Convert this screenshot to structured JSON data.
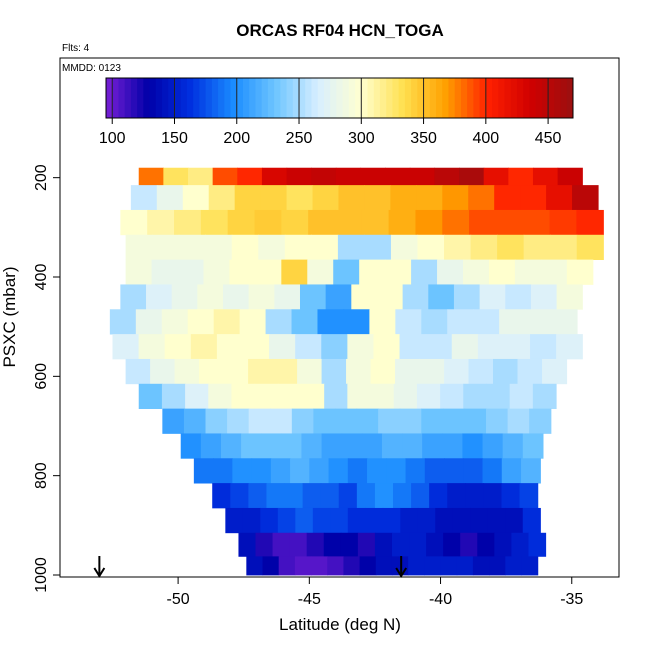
{
  "chart_data": {
    "type": "heatmap",
    "title": "ORCAS RF04 HCN_TOGA",
    "flts_label": "Flts: 4",
    "mmdd_label": "MMDD: 0123",
    "xlabel": "Latitude (deg N)",
    "ylabel": "PSXC (mbar)",
    "xlim": [
      -54.5,
      -33.2
    ],
    "ylim": [
      1000,
      100
    ],
    "x_ticks": [
      -50,
      -45,
      -40,
      -35
    ],
    "y_ticks": [
      200,
      400,
      600,
      800,
      1000
    ],
    "colorbar": {
      "range": [
        95,
        470
      ],
      "ticks": [
        100,
        150,
        200,
        250,
        300,
        350,
        400,
        450
      ],
      "colors": [
        "#7a1fd6",
        "#0000a8",
        "#0030e0",
        "#1a8cff",
        "#6fc6ff",
        "#d8efff",
        "#ffffd0",
        "#ffe050",
        "#ffa000",
        "#ff2000",
        "#d00000",
        "#9a1010"
      ]
    },
    "rows": [
      {
        "p": 190,
        "lat": [
          -51.5,
          -34.6
        ],
        "v": [
          380,
          330,
          320,
          390,
          400,
          430,
          440,
          445,
          440,
          440,
          440,
          440,
          450,
          460,
          420,
          400,
          420,
          440
        ]
      },
      {
        "p": 240,
        "lat": [
          -51.8,
          -34.0
        ],
        "v": [
          260,
          280,
          300,
          320,
          340,
          340,
          330,
          340,
          350,
          350,
          360,
          360,
          370,
          380,
          400,
          400,
          420,
          450
        ]
      },
      {
        "p": 290,
        "lat": [
          -52.2,
          -33.8
        ],
        "v": [
          300,
          310,
          320,
          330,
          340,
          345,
          340,
          350,
          350,
          350,
          360,
          370,
          380,
          390,
          390,
          390,
          395,
          400
        ]
      },
      {
        "p": 340,
        "lat": [
          -52.0,
          -33.8
        ],
        "v": [
          290,
          290,
          290,
          290,
          300,
          290,
          300,
          300,
          250,
          250,
          290,
          300,
          310,
          320,
          330,
          320,
          320,
          330
        ]
      },
      {
        "p": 390,
        "lat": [
          -52.0,
          -34.2
        ],
        "v": [
          290,
          280,
          280,
          290,
          300,
          300,
          340,
          290,
          230,
          300,
          300,
          250,
          280,
          290,
          300,
          290,
          290,
          300
        ]
      },
      {
        "p": 440,
        "lat": [
          -52.2,
          -34.6
        ],
        "v": [
          250,
          270,
          280,
          290,
          280,
          290,
          280,
          230,
          210,
          300,
          300,
          250,
          230,
          250,
          270,
          260,
          270,
          290
        ]
      },
      {
        "p": 490,
        "lat": [
          -52.6,
          -34.8
        ],
        "v": [
          250,
          280,
          290,
          300,
          310,
          300,
          250,
          230,
          200,
          200,
          300,
          260,
          250,
          260,
          260,
          280,
          280,
          280
        ]
      },
      {
        "p": 540,
        "lat": [
          -52.5,
          -34.6
        ],
        "v": [
          270,
          290,
          300,
          310,
          300,
          300,
          280,
          260,
          240,
          290,
          300,
          260,
          260,
          280,
          270,
          270,
          260,
          270
        ]
      },
      {
        "p": 590,
        "lat": [
          -52.0,
          -35.2
        ],
        "v": [
          260,
          280,
          290,
          300,
          300,
          310,
          310,
          290,
          250,
          290,
          300,
          280,
          280,
          270,
          260,
          250,
          260,
          270
        ]
      },
      {
        "p": 640,
        "lat": [
          -51.5,
          -35.6
        ],
        "v": [
          230,
          250,
          270,
          290,
          300,
          300,
          300,
          300,
          250,
          290,
          290,
          280,
          270,
          260,
          250,
          250,
          260,
          250
        ]
      },
      {
        "p": 690,
        "lat": [
          -50.6,
          -35.8
        ],
        "v": [
          210,
          220,
          240,
          250,
          260,
          260,
          240,
          230,
          230,
          230,
          240,
          240,
          230,
          230,
          230,
          240,
          250,
          240
        ]
      },
      {
        "p": 740,
        "lat": [
          -49.9,
          -36.1
        ],
        "v": [
          200,
          210,
          220,
          230,
          230,
          230,
          220,
          210,
          210,
          210,
          220,
          220,
          210,
          210,
          200,
          210,
          220,
          230
        ]
      },
      {
        "p": 790,
        "lat": [
          -49.4,
          -36.2
        ],
        "v": [
          190,
          190,
          200,
          200,
          210,
          220,
          210,
          200,
          190,
          200,
          200,
          190,
          180,
          180,
          180,
          190,
          210,
          220
        ]
      },
      {
        "p": 840,
        "lat": [
          -48.7,
          -36.3
        ],
        "v": [
          160,
          170,
          180,
          190,
          190,
          180,
          180,
          170,
          190,
          200,
          190,
          180,
          160,
          150,
          150,
          150,
          160,
          170
        ]
      },
      {
        "p": 890,
        "lat": [
          -48.2,
          -36.2
        ],
        "v": [
          150,
          150,
          160,
          170,
          180,
          170,
          170,
          160,
          160,
          160,
          150,
          150,
          140,
          140,
          140,
          140,
          140,
          160
        ]
      },
      {
        "p": 940,
        "lat": [
          -47.7,
          -36.0
        ],
        "v": [
          140,
          120,
          110,
          110,
          120,
          130,
          130,
          120,
          140,
          150,
          150,
          140,
          130,
          120,
          130,
          140,
          150,
          160
        ]
      },
      {
        "p": 985,
        "lat": [
          -47.4,
          -36.3
        ],
        "v": [
          140,
          130,
          110,
          105,
          105,
          110,
          120,
          130,
          140,
          140,
          150,
          150,
          150,
          150,
          140,
          140,
          150,
          150
        ]
      }
    ],
    "arrows": [
      -53.0,
      -41.5
    ]
  }
}
